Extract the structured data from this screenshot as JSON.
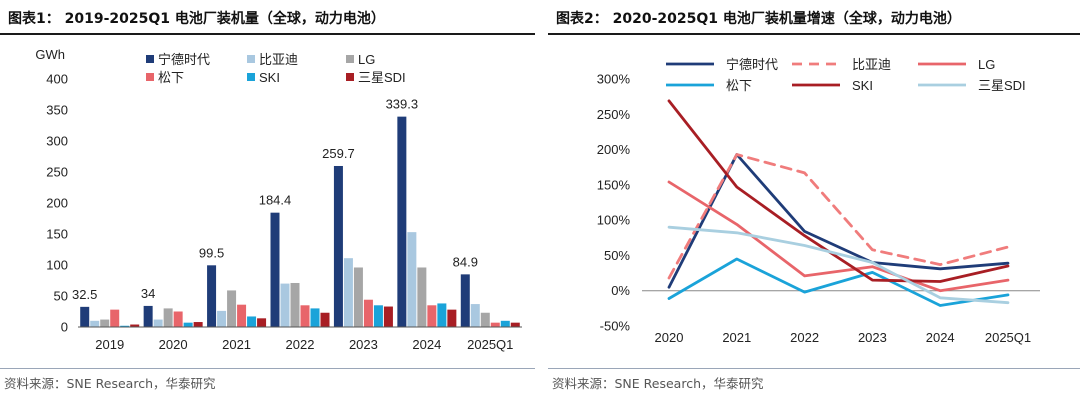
{
  "panels": {
    "left": {
      "title": "图表1：  2019-2025Q1 电池厂装机量（全球，动力电池）",
      "source": "资料来源：SNE Research，华泰研究"
    },
    "right": {
      "title": "图表2：  2020-2025Q1 电池厂装机量增速（全球，动力电池）",
      "source": "资料来源：SNE Research，华泰研究"
    }
  },
  "chart_data": [
    {
      "type": "bar",
      "title": "2019-2025Q1 电池厂装机量（全球，动力电池）",
      "ylabel": "GWh",
      "ylim": [
        0,
        400
      ],
      "yticks": [
        0,
        50,
        100,
        150,
        200,
        250,
        300,
        350,
        400
      ],
      "categories": [
        "2019",
        "2020",
        "2021",
        "2022",
        "2023",
        "2024",
        "2025Q1"
      ],
      "series": [
        {
          "name": "宁德时代",
          "color": "#1f3c78",
          "values": [
            32.5,
            34,
            99.5,
            184.4,
            259.7,
            339.3,
            84.9
          ]
        },
        {
          "name": "比亚迪",
          "color": "#a9c8e0",
          "values": [
            10,
            12,
            26,
            70,
            111,
            153,
            37
          ]
        },
        {
          "name": "LG",
          "color": "#a6a6a6",
          "values": [
            12,
            30,
            59,
            71,
            96,
            96,
            23
          ]
        },
        {
          "name": "松下",
          "color": "#e8656a",
          "values": [
            28,
            25,
            36,
            35,
            44,
            35,
            7
          ]
        },
        {
          "name": "SKI",
          "color": "#1aa3d9",
          "values": [
            2,
            7,
            17,
            30,
            35,
            38,
            10
          ]
        },
        {
          "name": "三星SDI",
          "color": "#a81e24",
          "values": [
            4,
            8,
            14,
            23,
            33,
            28,
            7
          ]
        }
      ],
      "data_labels": [
        "32.5",
        "34",
        "99.5",
        "184.4",
        "259.7",
        "339.3",
        "84.9"
      ],
      "legend": "top"
    },
    {
      "type": "line",
      "title": "2020-2025Q1 电池厂装机量增速（全球，动力电池）",
      "ylim": [
        -0.5,
        3.0
      ],
      "yticks": [
        -0.5,
        0,
        0.5,
        1.0,
        1.5,
        2.0,
        2.5,
        3.0
      ],
      "ytick_labels": [
        "-50%",
        "0%",
        "50%",
        "100%",
        "150%",
        "200%",
        "250%",
        "300%"
      ],
      "categories": [
        "2020",
        "2021",
        "2022",
        "2023",
        "2024",
        "2025Q1"
      ],
      "series": [
        {
          "name": "宁德时代",
          "color": "#1f3c78",
          "dash": "solid",
          "values": [
            0.05,
            1.93,
            0.84,
            0.4,
            0.31,
            0.39
          ]
        },
        {
          "name": "比亚迪",
          "color": "#f07c7c",
          "dash": "dashed",
          "values": [
            0.18,
            1.93,
            1.67,
            0.58,
            0.37,
            0.62
          ]
        },
        {
          "name": "LG",
          "color": "#e8656a",
          "dash": "solid",
          "values": [
            1.54,
            0.94,
            0.21,
            0.34,
            0.0,
            0.15
          ]
        },
        {
          "name": "松下",
          "color": "#1aa3d9",
          "dash": "solid",
          "values": [
            -0.11,
            0.45,
            -0.02,
            0.26,
            -0.21,
            -0.06
          ]
        },
        {
          "name": "SKI",
          "color": "#a81e24",
          "dash": "solid",
          "values": [
            2.69,
            1.47,
            0.78,
            0.15,
            0.13,
            0.35
          ]
        },
        {
          "name": "三星SDI",
          "color": "#a9cfe0",
          "dash": "solid",
          "values": [
            0.9,
            0.82,
            0.64,
            0.4,
            -0.1,
            -0.17
          ]
        }
      ],
      "legend": "top"
    }
  ]
}
